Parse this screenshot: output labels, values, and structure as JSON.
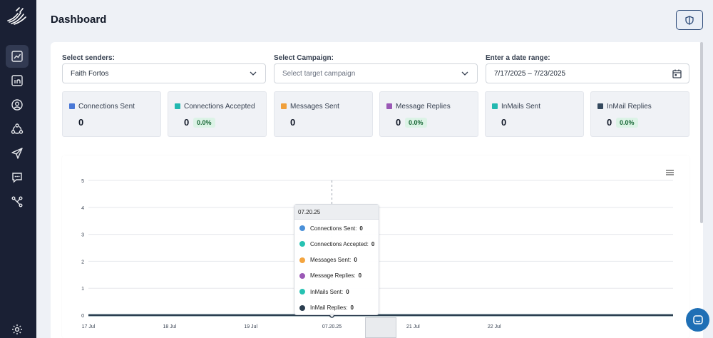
{
  "header": {
    "title": "Dashboard"
  },
  "sidebar": {
    "items": [
      {
        "icon": "analytics-icon",
        "active": true
      },
      {
        "icon": "linkedin-icon",
        "active": false
      },
      {
        "icon": "user-circle-icon",
        "active": false
      },
      {
        "icon": "network-icon",
        "active": false
      },
      {
        "icon": "send-icon",
        "active": false
      },
      {
        "icon": "chat-icon",
        "active": false
      },
      {
        "icon": "workflow-icon",
        "active": false
      },
      {
        "icon": "gear-icon",
        "active": false
      }
    ]
  },
  "filters": {
    "senders": {
      "label": "Select senders:",
      "value": "Faith Fortos"
    },
    "campaign": {
      "label": "Select Campaign:",
      "placeholder": "Select target campaign"
    },
    "date_range": {
      "label": "Enter a date range:",
      "value": "7/17/2025 – 7/23/2025"
    }
  },
  "stats": [
    {
      "label": "Connections Sent",
      "value": "0",
      "color": "#4a78d6"
    },
    {
      "label": "Connections Accepted",
      "value": "0",
      "percent": "0.0%",
      "color": "#22b8b0"
    },
    {
      "label": "Messages Sent",
      "value": "0",
      "color": "#f0a03c"
    },
    {
      "label": "Message Replies",
      "value": "0",
      "percent": "0.0%",
      "color": "#9b59b6"
    },
    {
      "label": "InMails Sent",
      "value": "0",
      "color": "#22b8b0"
    },
    {
      "label": "InMail Replies",
      "value": "0",
      "percent": "0.0%",
      "color": "#34495e"
    }
  ],
  "tooltip": {
    "date": "07.20.25",
    "rows": [
      {
        "label": "Connections Sent:",
        "value": "0",
        "color": "#4a90d9"
      },
      {
        "label": "Connections Accepted:",
        "value": "0",
        "color": "#26c2b2"
      },
      {
        "label": "Messages Sent:",
        "value": "0",
        "color": "#f4a540"
      },
      {
        "label": "Message Replies:",
        "value": "0",
        "color": "#9b59b6"
      },
      {
        "label": "InMails Sent:",
        "value": "0",
        "color": "#26c2b2"
      },
      {
        "label": "InMail Replies:",
        "value": "0",
        "color": "#2c3e50"
      }
    ]
  },
  "chart_data": {
    "type": "line",
    "y_ticks": [
      "0",
      "1",
      "2",
      "3",
      "4",
      "5"
    ],
    "ylim": [
      0,
      5
    ],
    "x": [
      "07.17.25",
      "07.18.25",
      "07.19.25",
      "07.20.25",
      "07.21.25",
      "07.22.25",
      "07.23.25"
    ],
    "x_tick_labels": [
      "17 Jul",
      "18 Jul",
      "19 Jul",
      "07.20.25",
      "21 Jul",
      "22 Jul"
    ],
    "series": [
      {
        "name": "Connections Sent",
        "values": [
          0,
          0,
          0,
          0,
          0,
          0,
          0
        ],
        "color": "#4a90d9"
      },
      {
        "name": "Connections Accepted",
        "values": [
          0,
          0,
          0,
          0,
          0,
          0,
          0
        ],
        "color": "#26c2b2"
      },
      {
        "name": "Messages Sent",
        "values": [
          0,
          0,
          0,
          0,
          0,
          0,
          0
        ],
        "color": "#f4a540"
      },
      {
        "name": "Message Replies",
        "values": [
          0,
          0,
          0,
          0,
          0,
          0,
          0
        ],
        "color": "#9b59b6"
      },
      {
        "name": "InMails Sent",
        "values": [
          0,
          0,
          0,
          0,
          0,
          0,
          0
        ],
        "color": "#26c2b2"
      },
      {
        "name": "InMail Replies",
        "values": [
          0,
          0,
          0,
          0,
          0,
          0,
          0
        ],
        "color": "#2c3e50"
      }
    ],
    "grid": true,
    "legend": "tooltip"
  }
}
